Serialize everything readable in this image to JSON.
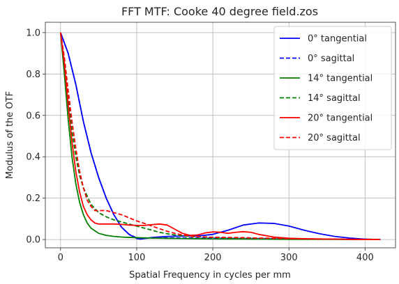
{
  "chart_data": {
    "type": "line",
    "title": "FFT MTF: Cooke 40 degree field.zos",
    "xlabel": "Spatial Frequency in cycles per mm",
    "ylabel": "Modulus of the OTF",
    "xlim": [
      -20,
      440
    ],
    "ylim": [
      -0.04,
      1.05
    ],
    "xticks": [
      0,
      100,
      200,
      300,
      400
    ],
    "yticks": [
      0.0,
      0.2,
      0.4,
      0.6,
      0.8,
      1.0
    ],
    "xtick_labels": [
      "0",
      "100",
      "200",
      "300",
      "400"
    ],
    "ytick_labels": [
      "0.0",
      "0.2",
      "0.4",
      "0.6",
      "0.8",
      "1.0"
    ],
    "grid": true,
    "legend_position": "upper right",
    "colors": {
      "blue": "#0000ff",
      "green": "#008000",
      "red": "#ff0000",
      "grid": "#b0b0b0"
    },
    "series": [
      {
        "name": "0° tangential",
        "color": "#0000ff",
        "dash": "solid",
        "x": [
          0,
          10,
          20,
          30,
          40,
          50,
          60,
          70,
          80,
          90,
          100,
          105,
          110,
          120,
          140,
          160,
          180,
          200,
          220,
          240,
          260,
          280,
          300,
          320,
          340,
          360,
          380,
          400,
          420
        ],
        "y": [
          1.0,
          0.9,
          0.75,
          0.57,
          0.42,
          0.3,
          0.2,
          0.12,
          0.06,
          0.025,
          0.005,
          0.002,
          0.005,
          0.01,
          0.015,
          0.017,
          0.017,
          0.025,
          0.045,
          0.07,
          0.08,
          0.078,
          0.065,
          0.045,
          0.028,
          0.015,
          0.007,
          0.002,
          0.0
        ]
      },
      {
        "name": "0° sagittal",
        "color": "#0000ff",
        "dash": "dashed",
        "x": [
          0,
          10,
          20,
          30,
          40,
          50,
          60,
          70,
          80,
          90,
          100,
          110,
          120,
          140,
          160,
          180,
          200,
          220,
          240,
          260,
          280,
          300,
          320,
          340,
          360,
          380,
          400,
          420
        ],
        "y": [
          1.0,
          0.9,
          0.75,
          0.57,
          0.42,
          0.3,
          0.2,
          0.12,
          0.06,
          0.025,
          0.008,
          0.006,
          0.007,
          0.008,
          0.008,
          0.007,
          0.007,
          0.006,
          0.005,
          0.005,
          0.004,
          0.003,
          0.003,
          0.002,
          0.002,
          0.001,
          0.001,
          0.0
        ]
      },
      {
        "name": "14° tangential",
        "color": "#008000",
        "dash": "solid",
        "x": [
          0,
          5,
          10,
          15,
          20,
          25,
          30,
          35,
          40,
          50,
          60,
          70,
          80,
          100,
          120,
          140,
          160,
          180,
          200,
          250,
          300,
          350,
          420
        ],
        "y": [
          1.0,
          0.8,
          0.58,
          0.4,
          0.27,
          0.18,
          0.12,
          0.08,
          0.055,
          0.03,
          0.02,
          0.015,
          0.012,
          0.009,
          0.007,
          0.006,
          0.005,
          0.004,
          0.003,
          0.002,
          0.001,
          0.001,
          0.0
        ]
      },
      {
        "name": "14° sagittal",
        "color": "#008000",
        "dash": "dashed",
        "x": [
          0,
          5,
          10,
          15,
          20,
          25,
          30,
          40,
          50,
          60,
          70,
          80,
          90,
          100,
          110,
          120,
          130,
          140,
          150,
          160,
          180,
          200,
          250,
          300,
          350,
          420
        ],
        "y": [
          1.0,
          0.85,
          0.68,
          0.52,
          0.4,
          0.31,
          0.25,
          0.17,
          0.13,
          0.11,
          0.095,
          0.085,
          0.075,
          0.065,
          0.055,
          0.045,
          0.035,
          0.028,
          0.022,
          0.018,
          0.013,
          0.01,
          0.006,
          0.004,
          0.002,
          0.0
        ]
      },
      {
        "name": "20° tangential",
        "color": "#ff0000",
        "dash": "solid",
        "x": [
          0,
          5,
          10,
          15,
          20,
          25,
          30,
          35,
          40,
          45,
          50,
          60,
          70,
          80,
          90,
          100,
          110,
          120,
          130,
          140,
          150,
          160,
          170,
          180,
          190,
          200,
          210,
          220,
          230,
          240,
          250,
          260,
          280,
          300,
          320,
          340,
          360,
          380,
          400,
          420
        ],
        "y": [
          1.0,
          0.85,
          0.65,
          0.47,
          0.33,
          0.23,
          0.16,
          0.12,
          0.095,
          0.08,
          0.075,
          0.075,
          0.075,
          0.073,
          0.07,
          0.068,
          0.068,
          0.072,
          0.075,
          0.07,
          0.05,
          0.03,
          0.02,
          0.022,
          0.032,
          0.037,
          0.035,
          0.03,
          0.035,
          0.038,
          0.035,
          0.025,
          0.012,
          0.006,
          0.004,
          0.003,
          0.002,
          0.001,
          0.0,
          0.0
        ]
      },
      {
        "name": "20° sagittal",
        "color": "#ff0000",
        "dash": "dashed",
        "x": [
          0,
          5,
          10,
          15,
          20,
          25,
          30,
          35,
          40,
          45,
          50,
          60,
          70,
          80,
          90,
          100,
          110,
          120,
          130,
          140,
          150,
          160,
          170,
          180,
          200,
          220,
          240,
          260,
          280,
          300,
          320,
          340,
          360,
          380,
          400,
          420
        ],
        "y": [
          1.0,
          0.88,
          0.72,
          0.57,
          0.44,
          0.33,
          0.25,
          0.19,
          0.16,
          0.14,
          0.14,
          0.14,
          0.13,
          0.12,
          0.105,
          0.09,
          0.078,
          0.065,
          0.052,
          0.04,
          0.03,
          0.022,
          0.017,
          0.014,
          0.011,
          0.01,
          0.009,
          0.007,
          0.006,
          0.004,
          0.003,
          0.002,
          0.002,
          0.001,
          0.001,
          0.0
        ]
      }
    ]
  }
}
